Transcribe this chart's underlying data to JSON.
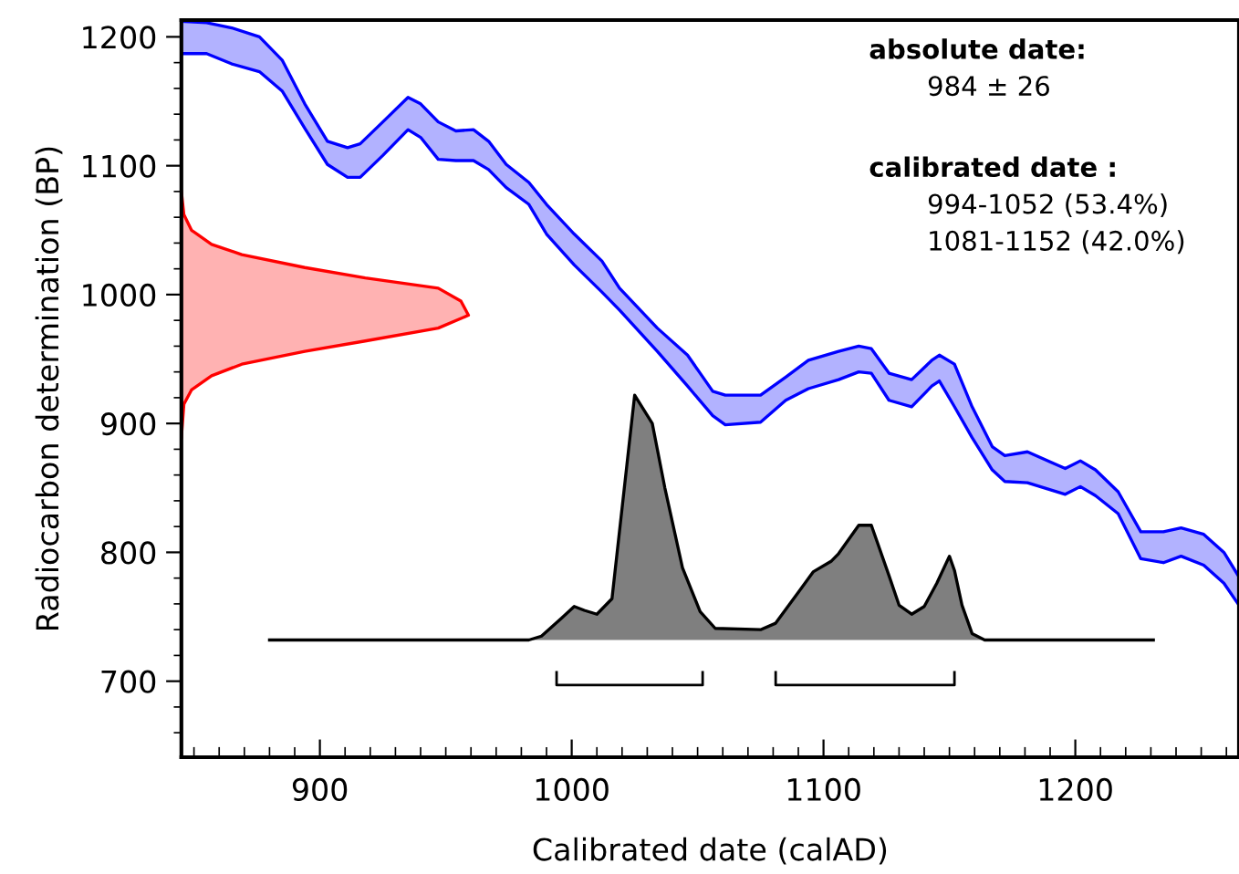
{
  "chart_data": {
    "type": "area",
    "xlabel": "Calibrated date (calAD)",
    "ylabel": "Radiocarbon determination (BP)",
    "xlim": [
      845,
      1265
    ],
    "ylim": [
      641,
      1213
    ],
    "xticks": [
      900,
      1000,
      1100,
      1200
    ],
    "yticks": [
      700,
      800,
      900,
      1000,
      1100,
      1200
    ],
    "series": [
      {
        "color": "#0000ff",
        "x": [
          845,
          855,
          865,
          876,
          885,
          894,
          903,
          911,
          916,
          925,
          935,
          940,
          947,
          954,
          961,
          967,
          974,
          983,
          990,
          1001,
          1012,
          1019,
          1034,
          1046,
          1056,
          1061,
          1075,
          1085,
          1094,
          1106,
          1114,
          1119,
          1126,
          1135,
          1143,
          1146,
          1152,
          1159,
          1167,
          1172,
          1181,
          1196,
          1202,
          1208,
          1217,
          1226,
          1235,
          1242,
          1251,
          1259,
          1265,
          1265,
          1259,
          1251,
          1242,
          1235,
          1226,
          1217,
          1208,
          1202,
          1196,
          1181,
          1172,
          1167,
          1159,
          1152,
          1146,
          1143,
          1135,
          1126,
          1119,
          1114,
          1106,
          1094,
          1085,
          1075,
          1061,
          1056,
          1046,
          1034,
          1019,
          1012,
          1001,
          990,
          983,
          974,
          967,
          961,
          954,
          947,
          940,
          935,
          925,
          916,
          911,
          903,
          894,
          885,
          876,
          865,
          855,
          845
        ],
        "values": [
          1212,
          1211,
          1207,
          1200,
          1182,
          1148,
          1119,
          1114,
          1117,
          1134,
          1153,
          1148,
          1134,
          1127,
          1128,
          1119,
          1101,
          1087,
          1070,
          1047,
          1026,
          1005,
          974,
          953,
          925,
          922,
          922,
          936,
          949,
          956,
          960,
          958,
          939,
          934,
          949,
          953,
          946,
          913,
          882,
          875,
          878,
          865,
          871,
          864,
          847,
          816,
          816,
          819,
          814,
          800,
          781,
          759,
          776,
          790,
          797,
          792,
          795,
          830,
          844,
          851,
          845,
          854,
          855,
          864,
          889,
          913,
          933,
          929,
          913,
          918,
          939,
          940,
          934,
          927,
          918,
          901,
          899,
          906,
          929,
          956,
          988,
          1002,
          1023,
          1047,
          1070,
          1083,
          1097,
          1104,
          1104,
          1105,
          1122,
          1128,
          1108,
          1091,
          1091,
          1101,
          1129,
          1158,
          1173,
          1179,
          1187,
          1187
        ]
      },
      {
        "color": "#ff0000",
        "x": [
          845,
          846,
          849,
          857,
          869,
          894,
          918,
          947,
          956,
          959,
          947,
          918,
          894,
          869,
          857,
          849,
          846,
          845
        ],
        "values": [
          1080,
          1062,
          1050,
          1039,
          1031,
          1021,
          1013,
          1005,
          995,
          984,
          974,
          964,
          956,
          946,
          937,
          926,
          915,
          889
        ]
      },
      {
        "color": "#000000",
        "x": [
          880,
          983,
          988,
          996,
          1001,
          1005,
          1010,
          1016,
          1025,
          1032,
          1037,
          1044,
          1051,
          1057,
          1075,
          1081,
          1090,
          1096,
          1103,
          1106,
          1114,
          1119,
          1126,
          1130,
          1135,
          1140,
          1145,
          1150,
          1152,
          1155,
          1159,
          1164,
          1231
        ],
        "values": [
          732,
          732,
          735,
          749,
          758,
          755,
          752,
          764,
          922,
          900,
          850,
          788,
          754,
          741,
          740,
          745,
          769,
          785,
          793,
          799,
          821,
          821,
          782,
          759,
          752,
          758,
          776,
          797,
          786,
          759,
          737,
          732,
          732
        ]
      },
      {
        "type": "line",
        "color": "#000000",
        "x": [
          994,
          994,
          1052,
          1052
        ],
        "values": [
          707,
          697,
          697,
          707
        ]
      },
      {
        "type": "line",
        "color": "#000000",
        "x": [
          1081,
          1081,
          1152,
          1152
        ],
        "values": [
          707,
          697,
          697,
          707
        ]
      }
    ],
    "annotations": [
      "absolute date:",
      "984 ± 26",
      "calibrated date :",
      "994-1052 (53.4%)",
      "1081-1152 (42.0%)"
    ],
    "grid": false
  }
}
